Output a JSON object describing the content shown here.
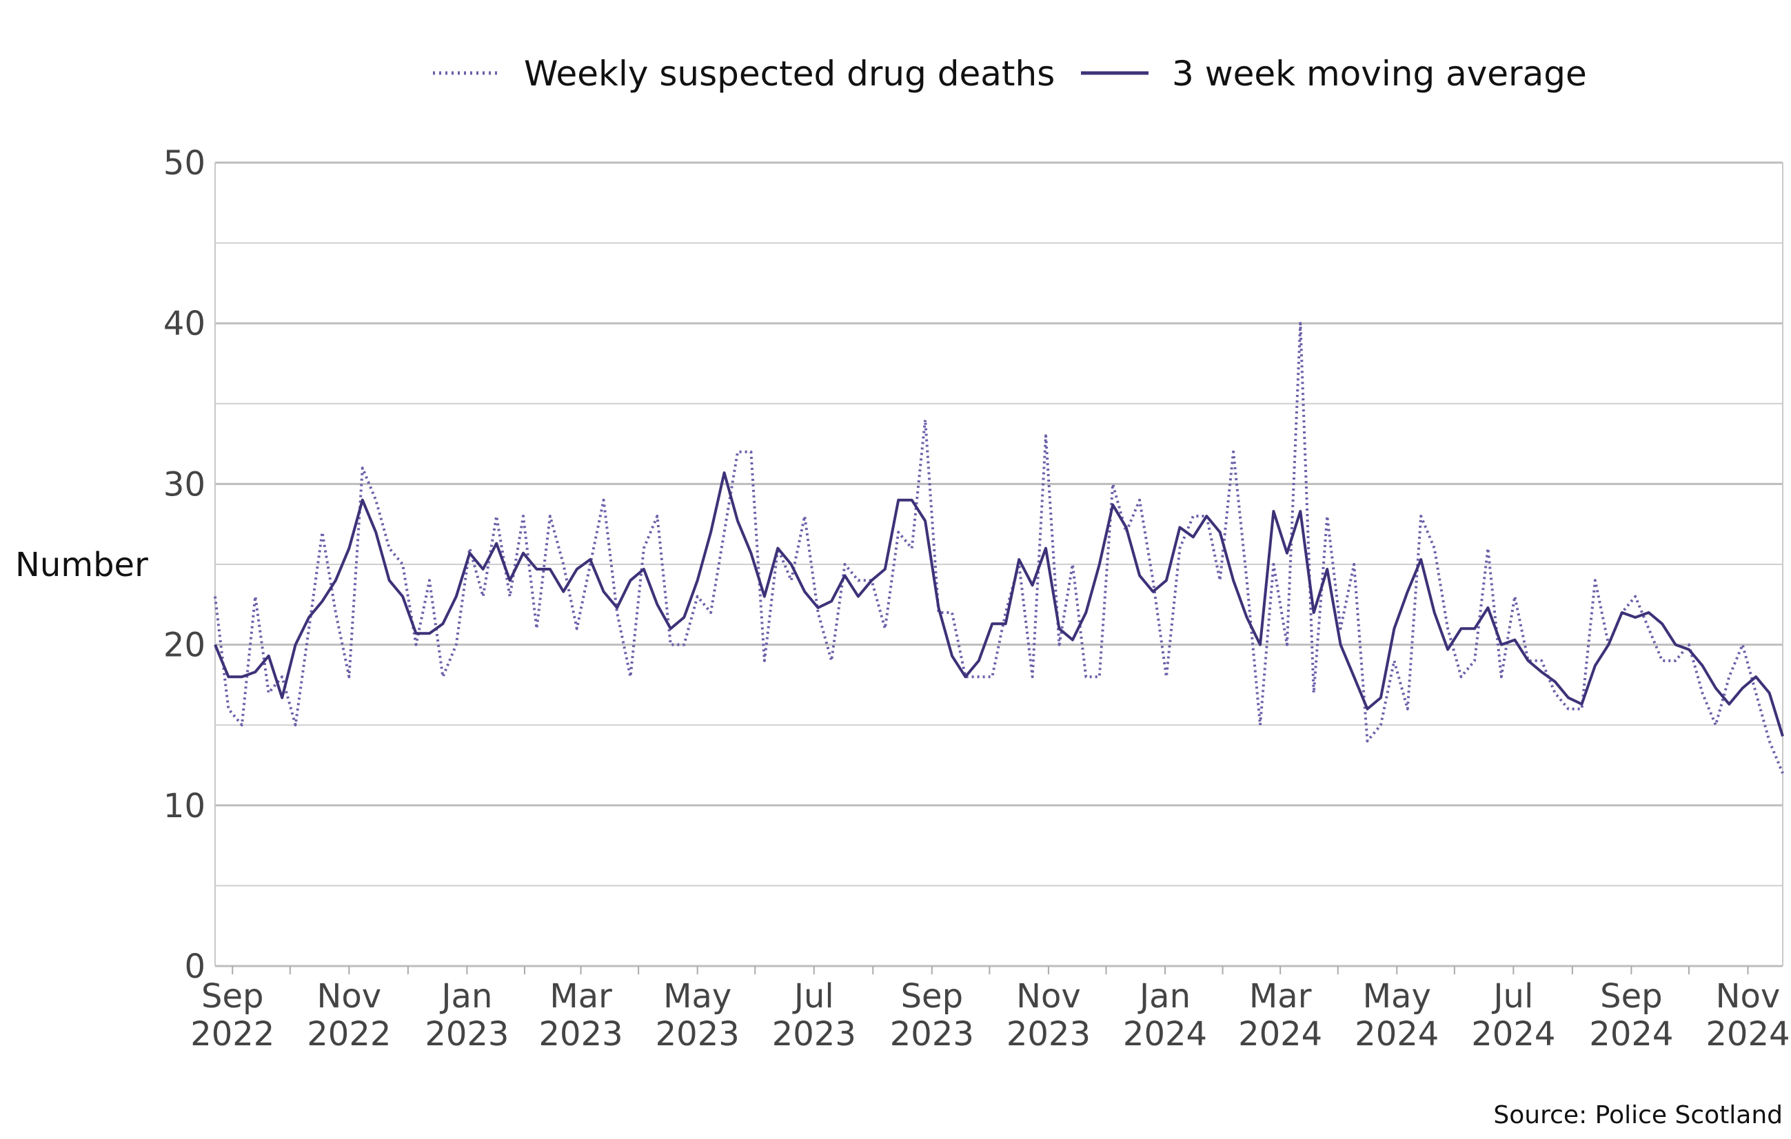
{
  "chart_data": {
    "type": "line",
    "ylabel": "Number",
    "ylim": [
      0,
      50
    ],
    "yticks": [
      "0",
      "10",
      "20",
      "30",
      "40",
      "50"
    ],
    "x_tick_labels": [
      {
        "month": "Sep",
        "year": "2022",
        "week": 1.3
      },
      {
        "month": "Nov",
        "year": "2022",
        "week": 10.0
      },
      {
        "month": "Jan",
        "year": "2023",
        "week": 18.8
      },
      {
        "month": "Mar",
        "year": "2023",
        "week": 27.3
      },
      {
        "month": "May",
        "year": "2023",
        "week": 36.0
      },
      {
        "month": "Jul",
        "year": "2023",
        "week": 44.7
      },
      {
        "month": "Sep",
        "year": "2023",
        "week": 53.5
      },
      {
        "month": "Nov",
        "year": "2023",
        "week": 62.2
      },
      {
        "month": "Jan",
        "year": "2024",
        "week": 70.9
      },
      {
        "month": "Mar",
        "year": "2024",
        "week": 79.5
      },
      {
        "month": "May",
        "year": "2024",
        "week": 88.2
      },
      {
        "month": "Jul",
        "year": "2024",
        "week": 96.9
      },
      {
        "month": "Sep",
        "year": "2024",
        "week": 105.7
      },
      {
        "month": "Nov",
        "year": "2024",
        "week": 114.4
      }
    ],
    "minor_tick_weeks": [
      5.6,
      14.4,
      23.1,
      31.6,
      40.3,
      49.1,
      57.8,
      66.5,
      75.2,
      83.8,
      92.5,
      101.3,
      110.0
    ],
    "series": [
      {
        "name": "Weekly suspected drug deaths",
        "style": "dotted",
        "color": "#6a5fa8",
        "values": [
          23,
          16,
          15,
          23,
          17,
          18,
          15,
          21,
          27,
          22,
          18,
          31,
          29,
          26,
          25,
          20,
          24,
          18,
          20,
          26,
          23,
          28,
          23,
          28,
          21,
          28,
          25,
          21,
          25,
          29,
          22,
          18,
          26,
          28,
          20,
          20,
          23,
          22,
          27,
          32,
          32,
          19,
          26,
          24,
          28,
          22,
          19,
          25,
          24,
          24,
          21,
          27,
          26,
          34,
          22,
          22,
          18,
          18,
          18,
          22,
          25,
          18,
          33,
          20,
          25,
          18,
          18,
          30,
          27,
          29,
          24,
          18,
          26,
          28,
          28,
          24,
          32,
          24,
          15,
          25,
          20,
          40,
          17,
          28,
          21,
          25,
          14,
          15,
          19,
          16,
          28,
          26,
          21,
          18,
          19,
          26,
          18,
          23,
          19,
          19,
          17,
          16,
          16,
          24,
          20,
          22,
          23,
          21,
          19,
          19,
          20,
          17,
          15,
          18,
          20,
          17,
          14,
          12
        ],
        "week_start": 0
      },
      {
        "name": "3 week moving average",
        "style": "solid",
        "color": "#3d3278",
        "values": [
          20,
          18,
          18,
          18.3,
          19.3,
          16.7,
          20,
          21.7,
          22.7,
          24,
          26,
          29,
          27,
          24,
          23,
          20.7,
          20.7,
          21.3,
          23,
          25.7,
          24.7,
          26.3,
          24,
          25.7,
          24.7,
          24.7,
          23.3,
          24.7,
          25.3,
          23.3,
          22.3,
          24,
          24.7,
          22.5,
          21,
          21.7,
          24,
          27,
          30.7,
          27.7,
          25.7,
          23,
          26,
          25,
          23.3,
          22.3,
          22.7,
          24.3,
          23,
          24,
          24.7,
          29,
          29,
          27.7,
          22.3,
          19.3,
          18,
          19,
          21.3,
          21.3,
          25.3,
          23.7,
          26,
          21,
          20.3,
          22,
          25,
          28.7,
          27.3,
          24.3,
          23.3,
          24,
          27.3,
          26.7,
          28,
          27,
          24,
          21.7,
          20,
          28.3,
          25.7,
          28.3,
          22,
          24.7,
          20,
          18,
          16,
          16.7,
          21,
          23.3,
          25.3,
          22,
          19.7,
          21,
          21,
          22.3,
          20,
          20.3,
          19,
          18.3,
          17.7,
          16.7,
          16.3,
          18.7,
          20,
          22,
          21.7,
          22,
          21.3,
          20,
          19.7,
          18.7,
          17.3,
          16.3,
          17.3,
          18,
          17,
          14.3
        ],
        "week_start": 0
      }
    ]
  },
  "legend": {
    "items": [
      "Weekly suspected drug deaths",
      "3 week moving average"
    ]
  },
  "source": "Source: Police Scotland"
}
